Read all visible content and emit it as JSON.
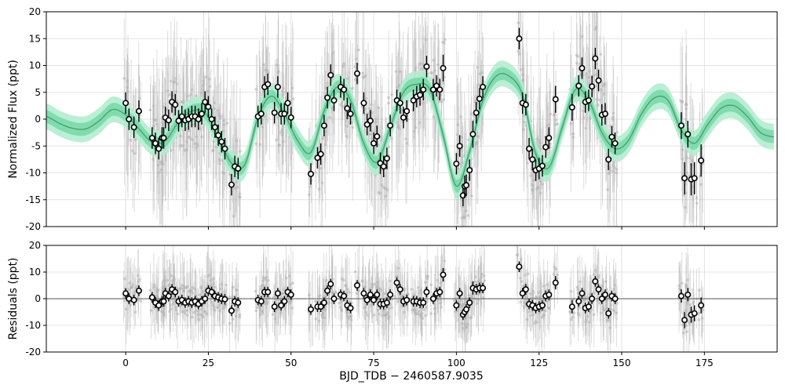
{
  "chart_data": [
    {
      "type": "scatter",
      "panel": "flux",
      "ylabel": "Normalized Flux (ppt)",
      "xlim": [
        -24,
        197
      ],
      "ylim": [
        -20,
        20
      ],
      "xticks": [
        0,
        25,
        50,
        75,
        100,
        125,
        150,
        175
      ],
      "yticks": [
        -20,
        -15,
        -10,
        -5,
        0,
        5,
        10,
        15,
        20
      ],
      "grid": true,
      "colors": {
        "model": "#4a9a74",
        "band_inner": "#76d8a6",
        "band_outer": "#b2ecd0",
        "points": "#000000",
        "raw": "#b4b4b4"
      },
      "model_curve": {
        "x": [
          -24,
          -20,
          -16,
          -12,
          -8,
          -4,
          0,
          4,
          8,
          12,
          16,
          20,
          24,
          28,
          32,
          36,
          40,
          44,
          48,
          52,
          56,
          60,
          64,
          68,
          72,
          76,
          80,
          84,
          88,
          92,
          96,
          100,
          104,
          108,
          112,
          116,
          120,
          124,
          128,
          132,
          136,
          140,
          144,
          148,
          152,
          156,
          160,
          164,
          168,
          172,
          176,
          180,
          184,
          188,
          192,
          196
        ],
        "y": [
          0.5,
          -0.8,
          -1.7,
          -1.8,
          -0.3,
          1.8,
          0.8,
          -1.8,
          -4.3,
          -4.0,
          -0.5,
          1.5,
          1.2,
          -3.3,
          -8.2,
          -8.5,
          0.3,
          4.3,
          1.0,
          -4.0,
          -6.2,
          1.5,
          6.0,
          3.5,
          -4.5,
          -8.0,
          -1.5,
          5.0,
          6.5,
          5.5,
          -3.0,
          -12.5,
          -6.0,
          3.5,
          8.0,
          8.0,
          4.5,
          -6.5,
          -9.0,
          -1.5,
          5.5,
          3.5,
          -2.5,
          -5.5,
          -4.0,
          1.0,
          4.0,
          3.5,
          -2.0,
          -4.5,
          -1.0,
          2.0,
          2.5,
          0.5,
          -2.5,
          -3.3
        ],
        "band_inner": 1.2,
        "band_outer": 2.4
      },
      "series": [
        {
          "x": [
            0,
            1,
            2.5,
            4,
            8,
            9,
            10,
            11,
            11.5,
            12,
            13,
            14,
            15,
            16,
            17,
            18,
            19,
            20,
            21,
            22,
            23,
            24,
            25,
            26,
            27,
            28,
            29,
            30,
            32,
            33,
            34,
            40,
            41,
            42,
            43,
            45,
            46,
            47,
            48,
            49,
            50,
            56,
            58,
            59,
            60,
            61,
            62,
            63,
            65,
            66,
            67,
            68,
            70,
            72,
            73,
            74,
            75,
            76,
            77,
            78,
            79,
            80,
            82,
            83,
            84,
            85,
            87,
            88,
            89,
            90,
            91,
            93,
            94,
            95,
            96,
            100,
            101,
            102,
            102.5,
            103,
            104,
            105,
            106,
            107,
            108,
            119,
            120,
            121,
            122,
            123,
            124,
            125,
            126,
            127,
            128,
            130,
            135,
            137,
            138,
            139,
            140,
            141,
            142,
            143,
            144,
            145,
            146,
            147,
            148,
            168,
            169,
            170,
            171,
            172,
            174
          ],
          "y": [
            3,
            0,
            -1.5,
            1.5,
            -3.5,
            -4.5,
            -5.5,
            -3.5,
            -3.5,
            0.3,
            -0.2,
            3.2,
            2.7,
            -0.3,
            0.5,
            -0.2,
            0,
            0.5,
            0.5,
            0,
            1,
            3.2,
            2.3,
            0,
            -1.5,
            -3,
            -4.2,
            -5.5,
            -12.2,
            -8.8,
            -9.2,
            0.5,
            1,
            6,
            6.5,
            1.2,
            6,
            1,
            1,
            3,
            0.3,
            -10.2,
            -7.2,
            -6.5,
            -1.2,
            4,
            8.2,
            3.5,
            6,
            5.5,
            2,
            1,
            8.5,
            3,
            -1,
            -0.3,
            -4.5,
            -3.2,
            -8.2,
            -8.8,
            -7.3,
            -1.2,
            3.5,
            3,
            0.3,
            1.5,
            3.5,
            4.2,
            4.5,
            5.5,
            9.8,
            5.5,
            6.2,
            5.5,
            9.5,
            -8.3,
            -5,
            -14.2,
            -12.5,
            -12.3,
            -9.5,
            -2.8,
            1.2,
            3.8,
            6,
            15,
            3,
            2.7,
            -5.5,
            -7.5,
            -9.5,
            -9.2,
            -8.7,
            -5.2,
            -3.5,
            3.7,
            2.2,
            6.2,
            9.5,
            3.2,
            3.5,
            6.1,
            11.3,
            7.2,
            0.8,
            1,
            -7.5,
            -3.3,
            -4.5,
            -1.2,
            -11,
            -2.8,
            -11.2,
            -11,
            -7.7
          ],
          "err": [
            2,
            2,
            2,
            2,
            2,
            2,
            2,
            2,
            2,
            2,
            2,
            2,
            2,
            2,
            2,
            2,
            2,
            2,
            2,
            2,
            2,
            2,
            2,
            2,
            2,
            2,
            2,
            2,
            2,
            2,
            2,
            2,
            2,
            2,
            2,
            2,
            2,
            2,
            2,
            2,
            2,
            2,
            2,
            2,
            2,
            2,
            2,
            2,
            2,
            2,
            2,
            2,
            2,
            2,
            2,
            2,
            2,
            2,
            2,
            2,
            2,
            2,
            2,
            2,
            2,
            2,
            2,
            2,
            2,
            2,
            2,
            2,
            2,
            2,
            2.5,
            2,
            2,
            2,
            2,
            2,
            2,
            2.5,
            2,
            2,
            2,
            2,
            2,
            2,
            2,
            2,
            2,
            2,
            2,
            2,
            2,
            2.5,
            2.5,
            2,
            2,
            2,
            2,
            2,
            2,
            2,
            2,
            2,
            2,
            2,
            2,
            2.5,
            3,
            2.5,
            3,
            3,
            3
          ]
        }
      ]
    },
    {
      "type": "scatter",
      "panel": "residuals",
      "xlabel": "BJD_TDB − 2460587.9035",
      "ylabel": "Residuals (ppt)",
      "xlim": [
        -24,
        197
      ],
      "ylim": [
        -20,
        20
      ],
      "xticks": [
        0,
        25,
        50,
        75,
        100,
        125,
        150,
        175
      ],
      "yticks": [
        -20,
        -10,
        0,
        10,
        20
      ],
      "zero_line": 0,
      "grid": true,
      "series": [
        {
          "x": [
            0,
            1,
            2.5,
            4,
            8,
            9,
            10,
            11,
            11.5,
            12,
            13,
            14,
            15,
            16,
            17,
            18,
            19,
            20,
            21,
            22,
            23,
            24,
            25,
            26,
            27,
            28,
            29,
            30,
            32,
            33,
            34,
            40,
            41,
            42,
            43,
            45,
            46,
            47,
            48,
            49,
            50,
            56,
            58,
            59,
            60,
            61,
            62,
            63,
            65,
            66,
            67,
            68,
            70,
            72,
            73,
            74,
            75,
            76,
            77,
            78,
            79,
            80,
            82,
            83,
            84,
            85,
            87,
            88,
            89,
            90,
            91,
            93,
            94,
            95,
            96,
            100,
            101,
            102,
            102.5,
            103,
            104,
            105,
            106,
            107,
            108,
            119,
            120,
            121,
            122,
            123,
            124,
            125,
            126,
            127,
            128,
            130,
            135,
            137,
            138,
            139,
            140,
            141,
            142,
            143,
            144,
            145,
            146,
            147,
            148,
            168,
            169,
            170,
            171,
            172,
            174
          ],
          "y": [
            2,
            0,
            -0.5,
            3,
            0.5,
            -1.5,
            -2.5,
            -1,
            -1,
            2,
            1,
            3.5,
            2.5,
            -1,
            -0.5,
            -1.5,
            -1,
            -1.5,
            -1,
            -2,
            -1,
            0,
            3,
            2.5,
            1,
            0.5,
            0,
            -0.2,
            -4.5,
            -1,
            -1.5,
            -0.5,
            -1,
            2.5,
            2.5,
            -3,
            2,
            -2.5,
            -1,
            2.5,
            1.5,
            -4,
            -3,
            -3,
            -1.5,
            3,
            5.5,
            0,
            1.5,
            1,
            -2.5,
            -3.5,
            5,
            2,
            -0.5,
            1.5,
            -0.5,
            1.5,
            -2,
            -2,
            -1.5,
            1.5,
            6,
            3.5,
            -1,
            -0.5,
            -1,
            -1,
            -1.5,
            -1.5,
            2.5,
            0,
            2,
            2.5,
            9,
            -2.5,
            2,
            -6,
            -5,
            -4,
            -1.5,
            4,
            3.5,
            4,
            4,
            12,
            2,
            3.5,
            -2,
            -2.5,
            -3.5,
            -3,
            -2.5,
            1,
            1.5,
            6,
            -3,
            -1,
            2,
            -3.5,
            -3,
            0,
            6.5,
            3.5,
            0,
            1.5,
            -5.5,
            1,
            0,
            1,
            -8,
            1.5,
            -6,
            -5.5,
            -2.5
          ],
          "err": [
            2,
            2,
            2,
            2,
            2,
            2,
            2,
            2,
            2,
            2,
            2,
            2,
            2,
            2,
            2,
            2,
            2,
            2,
            2,
            2,
            2,
            2,
            2,
            2,
            2,
            2,
            2,
            2,
            2,
            2,
            2,
            2,
            2,
            2,
            2,
            2,
            2,
            2,
            2,
            2,
            2,
            2,
            2,
            2,
            2,
            2,
            2,
            2,
            2,
            2,
            2,
            2,
            2,
            2,
            2,
            2,
            2,
            2,
            2,
            2,
            2,
            2,
            2,
            2,
            2,
            2,
            2,
            2,
            2,
            2,
            2,
            2,
            2,
            2,
            2.5,
            2,
            2,
            2,
            2,
            2,
            2,
            2.5,
            2,
            2,
            2,
            2,
            2,
            2,
            2,
            2,
            2,
            2,
            2,
            2,
            2,
            2.5,
            2.5,
            2,
            2,
            2,
            2,
            2,
            2,
            2,
            2,
            2,
            2,
            2,
            2,
            2.5,
            3,
            2.5,
            3,
            3,
            3
          ]
        }
      ]
    }
  ]
}
